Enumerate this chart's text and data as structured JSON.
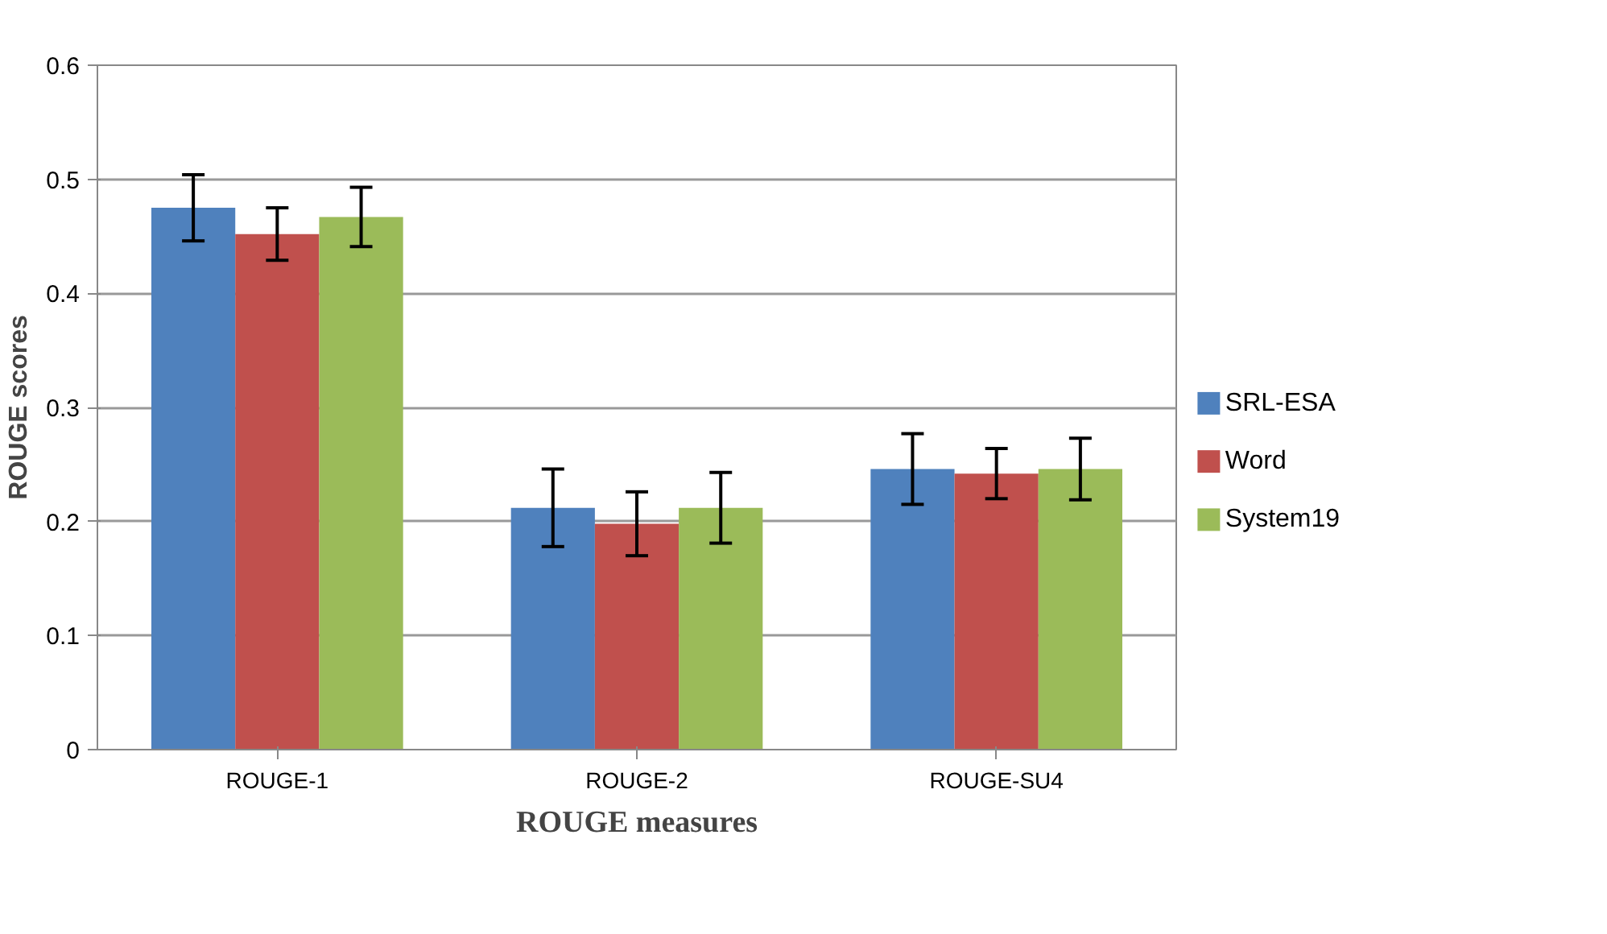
{
  "chart_data": {
    "type": "bar",
    "categories": [
      "ROUGE-1",
      "ROUGE-2",
      "ROUGE-SU4"
    ],
    "series": [
      {
        "name": "SRL-ESA",
        "color": "#4f81bd",
        "values": [
          0.475,
          0.212,
          0.246
        ],
        "errors": [
          0.029,
          0.034,
          0.031
        ]
      },
      {
        "name": "Word",
        "color": "#c0504d",
        "values": [
          0.452,
          0.198,
          0.242
        ],
        "errors": [
          0.023,
          0.028,
          0.022
        ]
      },
      {
        "name": "System19",
        "color": "#9bbb59",
        "values": [
          0.467,
          0.212,
          0.246
        ],
        "errors": [
          0.026,
          0.031,
          0.027
        ]
      }
    ],
    "xlabel": "ROUGE measures",
    "ylabel": "ROUGE scores",
    "ylim": [
      0,
      0.6
    ],
    "yticks": [
      0,
      0.1,
      0.2,
      0.3,
      0.4,
      0.5,
      0.6
    ],
    "grid": "y",
    "legend": "right"
  }
}
